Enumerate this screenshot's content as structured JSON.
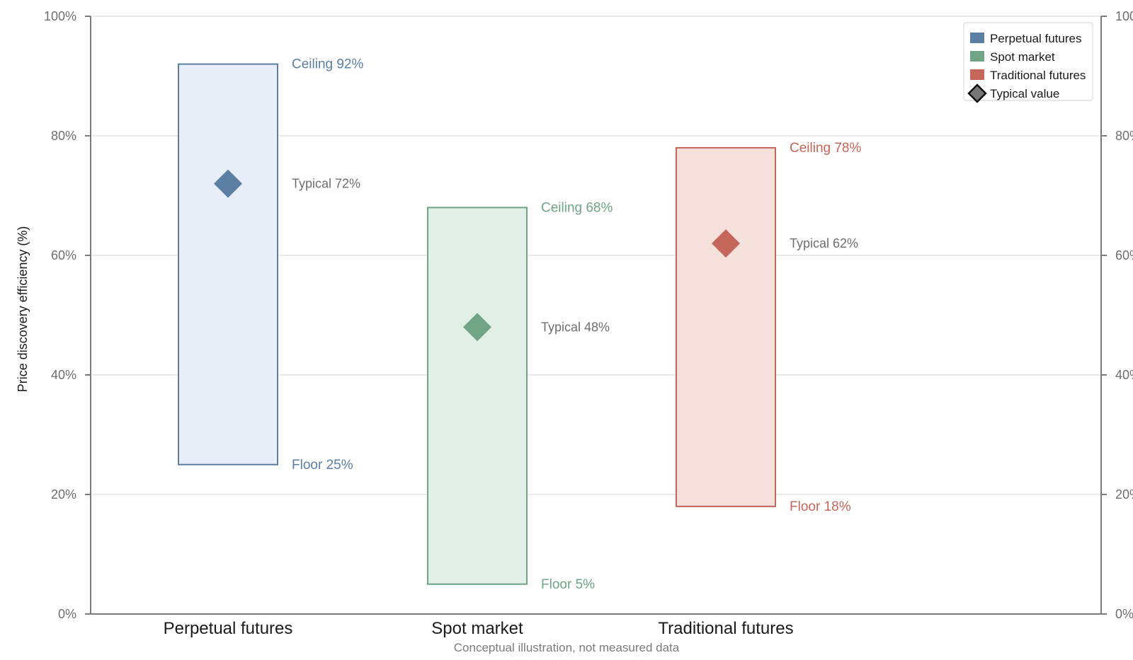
{
  "chart_data": {
    "type": "bar",
    "subtype": "floating-range",
    "categories": [
      "Perpetual futures",
      "Spot market",
      "Traditional futures"
    ],
    "series": [
      {
        "name": "Perpetual futures",
        "floor": 25,
        "ceiling": 92,
        "typical": 72,
        "color": "#5b7fa3",
        "fill": "#e8eef7"
      },
      {
        "name": "Spot market",
        "floor": 5,
        "ceiling": 68,
        "typical": 48,
        "color": "#6fa484",
        "fill": "#e2efe7"
      },
      {
        "name": "Traditional futures",
        "floor": 18,
        "ceiling": 78,
        "typical": 62,
        "color": "#c4665a",
        "fill": "#f5e0dc"
      }
    ],
    "annotations": [
      {
        "ceiling": "Ceiling 92%",
        "typical": "Typical 72%",
        "floor": "Floor 25%"
      },
      {
        "ceiling": "Ceiling 68%",
        "typical": "Typical 48%",
        "floor": "Floor 5%"
      },
      {
        "ceiling": "Ceiling 78%",
        "typical": "Typical 62%",
        "floor": "Floor 18%"
      }
    ],
    "ylabel": "Price discovery efficiency (%)",
    "ylim": [
      0,
      100
    ],
    "yticks": [
      0,
      20,
      40,
      60,
      80,
      100
    ],
    "ytick_labels": [
      "0%",
      "20%",
      "40%",
      "60%",
      "80%",
      "100%"
    ],
    "right_axis_mirrored": true,
    "grid": true,
    "legend": {
      "placement": "top-right",
      "entries": [
        "Perpetual futures",
        "Spot market",
        "Traditional futures",
        "Typical value"
      ]
    },
    "footnote": "Conceptual illustration, not measured data"
  }
}
